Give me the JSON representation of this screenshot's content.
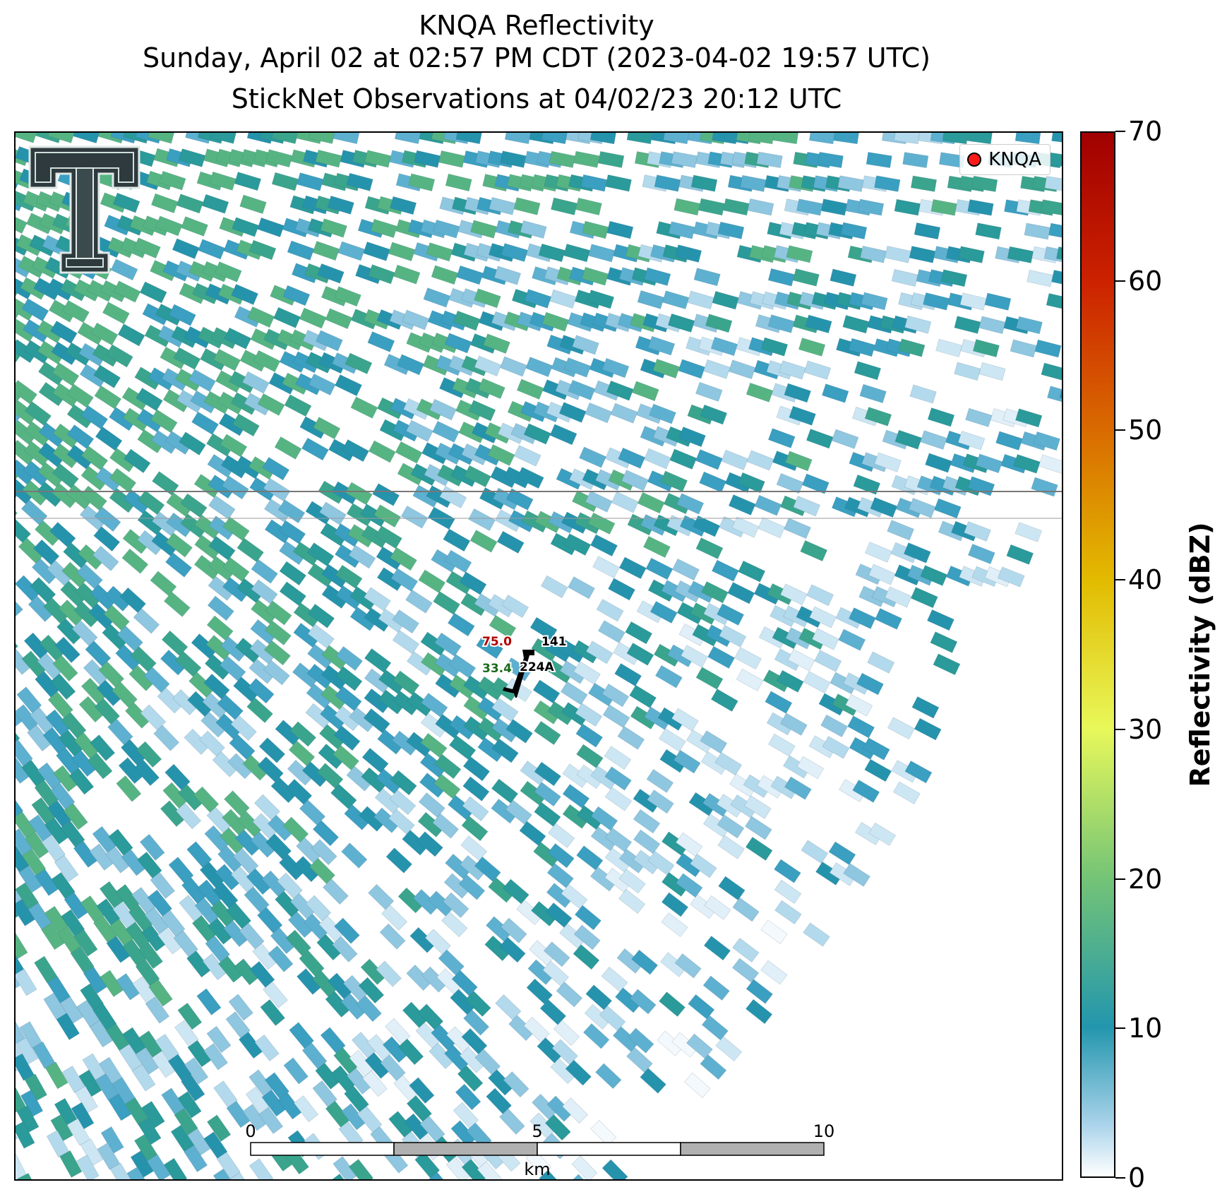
{
  "title": {
    "line1": "KNQA Reflectivity",
    "line2": "Sunday, April 02 at 02:57 PM CDT (2023-04-02 19:57 UTC)",
    "line3": "StickNet Observations at 04/02/23 20:12 UTC"
  },
  "legend": {
    "label": "KNQA",
    "marker_color": "#ff1a1a"
  },
  "colorbar": {
    "title": "Reflectivity (dBZ)",
    "ticks": [
      "0",
      "10",
      "20",
      "30",
      "40",
      "50",
      "60",
      "70"
    ],
    "range": [
      0,
      70
    ],
    "colors": [
      "#ffffff",
      "#a9d3ea",
      "#2296ad",
      "#74c476",
      "#e8f85a",
      "#e2bb00",
      "#d96b00",
      "#cc2200",
      "#a00000"
    ]
  },
  "station": {
    "temperature": "75.0",
    "dewpoint": "33.4",
    "pressure": "141",
    "id": "224A",
    "temperature_color": "#b30000",
    "dewpoint_color": "#1a6b1a"
  },
  "scalebar": {
    "ticks": [
      "0",
      "5",
      "10"
    ],
    "unit": "km"
  },
  "logo": {
    "name": "texas-tech-double-t-logo"
  }
}
